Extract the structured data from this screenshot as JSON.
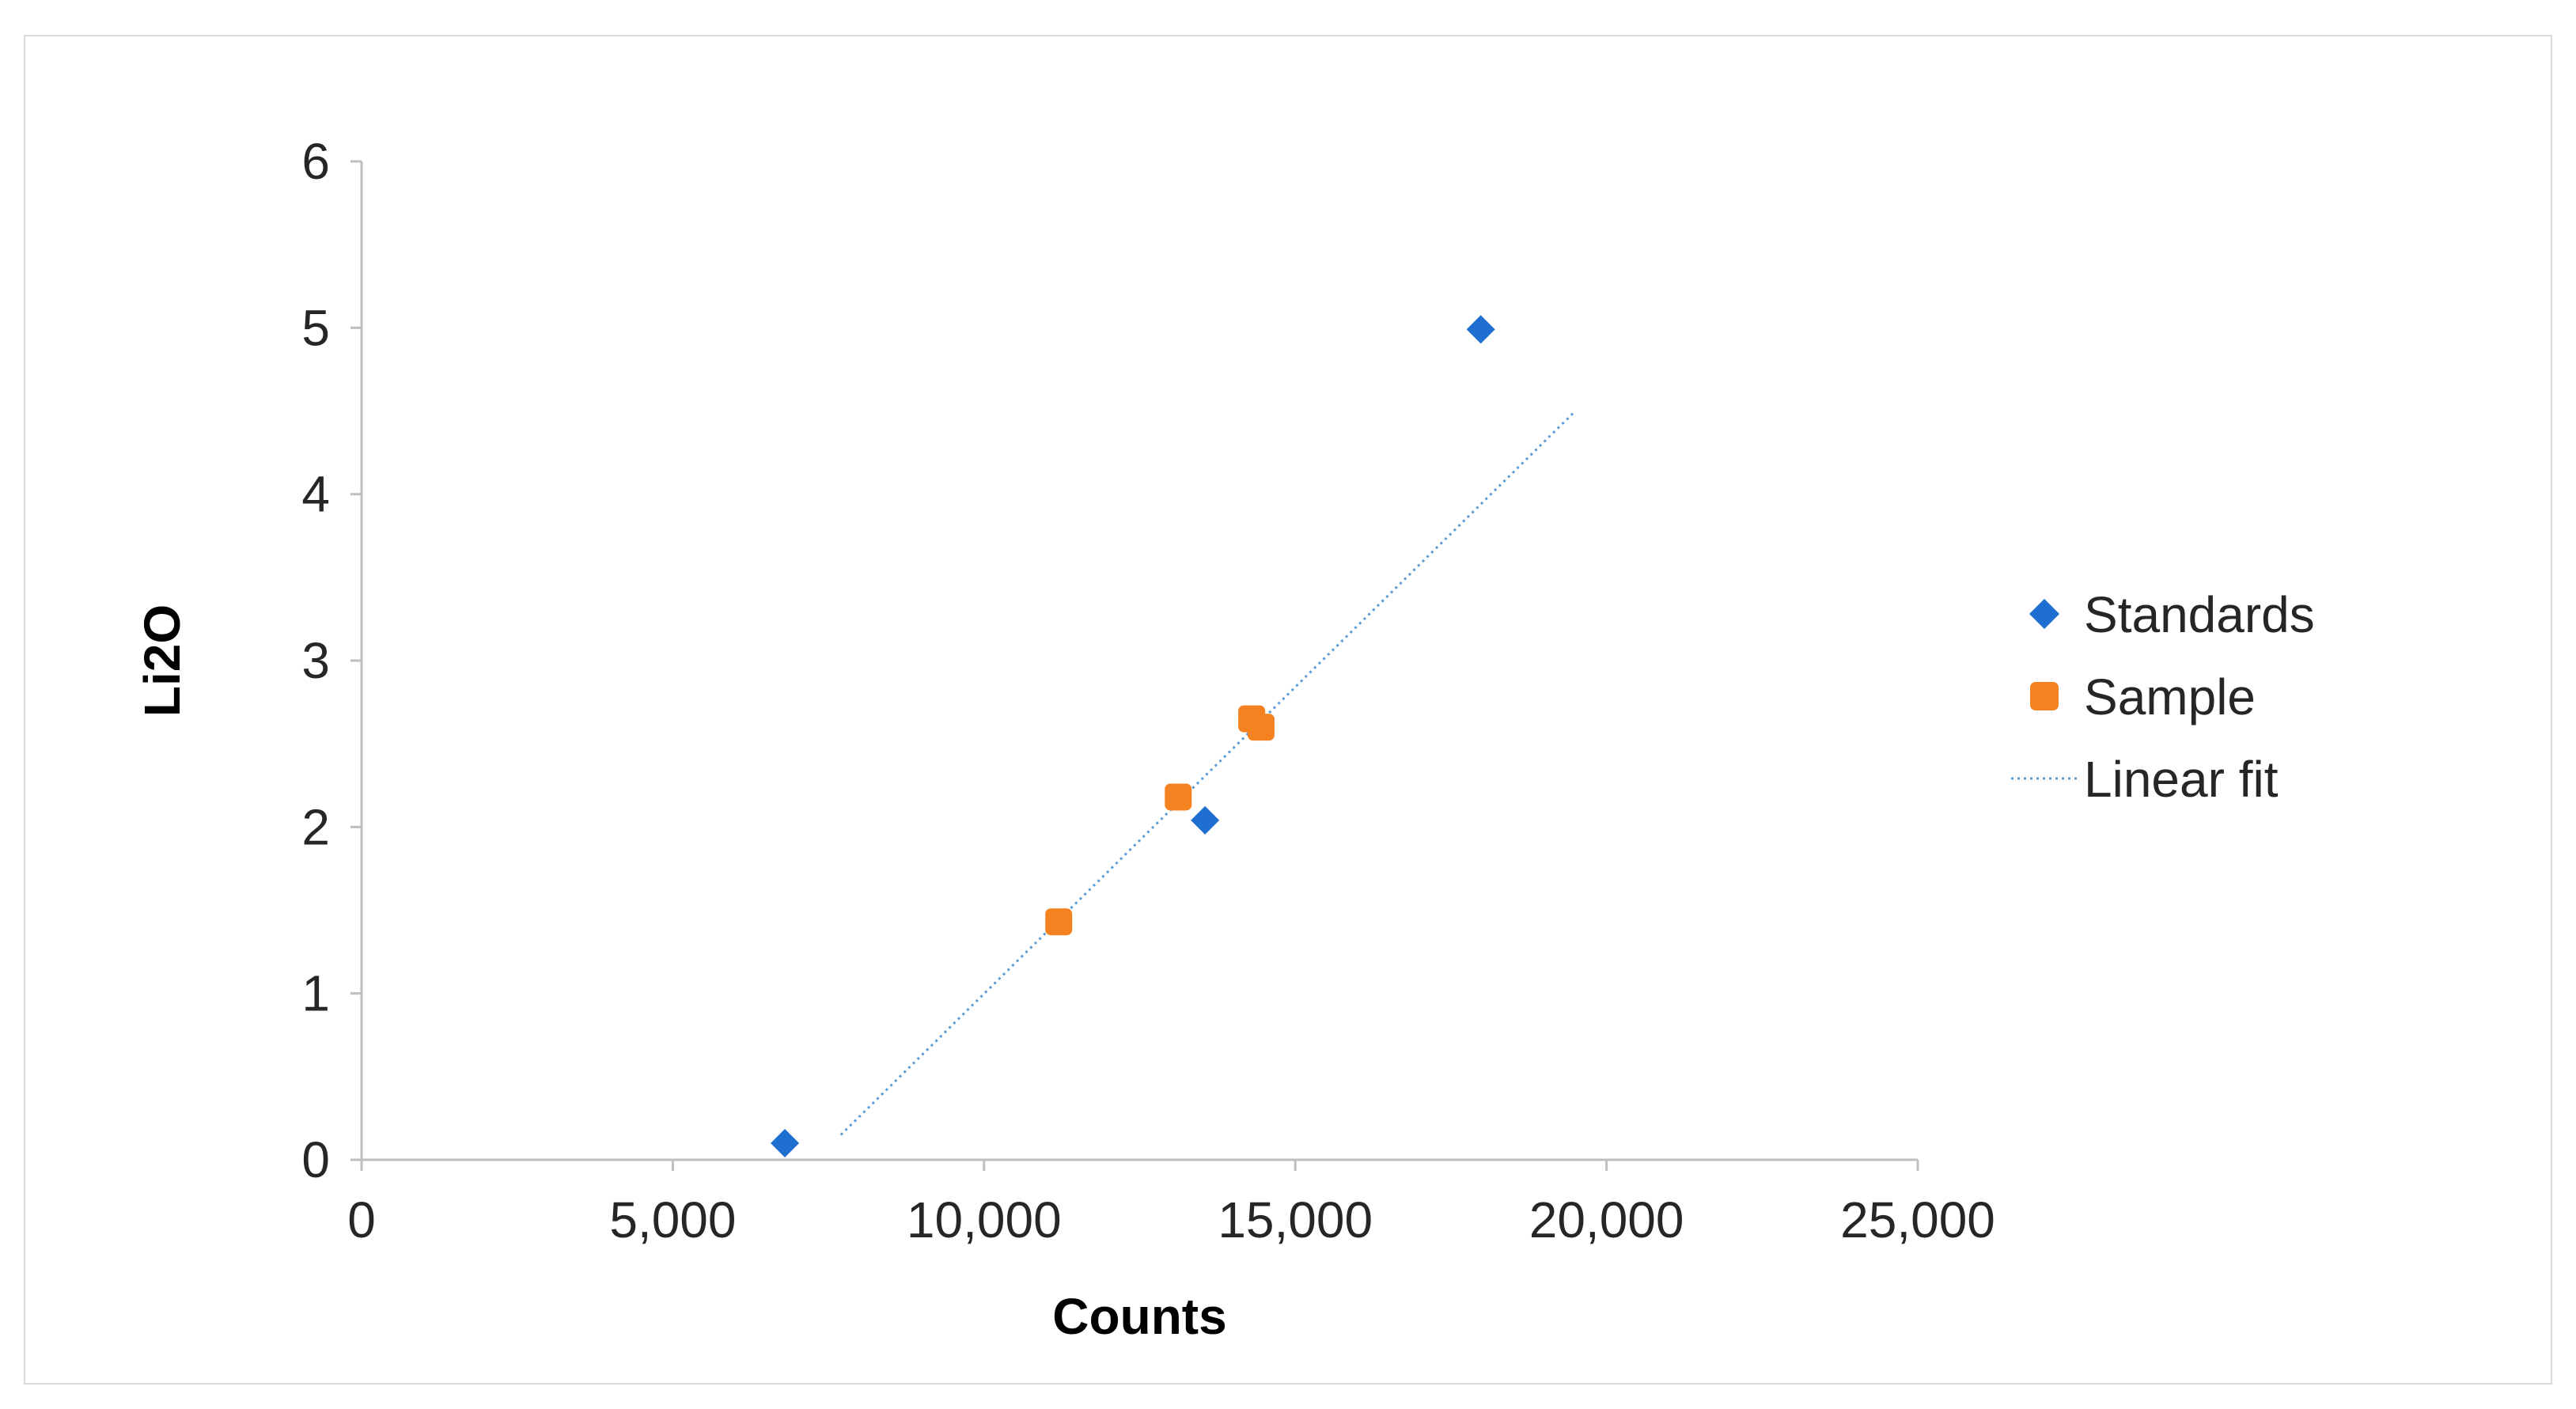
{
  "chart_data": {
    "type": "scatter",
    "xlabel": "Counts",
    "ylabel": "Li2O",
    "xlim": [
      0,
      25000
    ],
    "ylim": [
      0,
      6
    ],
    "x_ticks": [
      0,
      5000,
      10000,
      15000,
      20000,
      25000
    ],
    "x_tick_labels": [
      "0",
      "5,000",
      "10,000",
      "15,000",
      "20,000",
      "25,000"
    ],
    "y_ticks": [
      0,
      1,
      2,
      3,
      4,
      5,
      6
    ],
    "y_tick_labels": [
      "0",
      "1",
      "2",
      "3",
      "4",
      "5",
      "6"
    ],
    "grid": false,
    "legend_position": "right",
    "series": [
      {
        "name": "Standards",
        "marker": "diamond",
        "color": "#1f6fd1",
        "points": [
          {
            "x": 6800,
            "y": 0.1
          },
          {
            "x": 13550,
            "y": 2.04
          },
          {
            "x": 17980,
            "y": 4.99
          }
        ]
      },
      {
        "name": "Sample",
        "marker": "square",
        "color": "#f58220",
        "points": [
          {
            "x": 11200,
            "y": 1.43
          },
          {
            "x": 13120,
            "y": 2.18
          },
          {
            "x": 14300,
            "y": 2.65
          },
          {
            "x": 14450,
            "y": 2.6
          }
        ]
      },
      {
        "name": "Linear fit",
        "line": "dotted",
        "color": "#5b9bd5",
        "points": [
          {
            "x": 7700,
            "y": 0.15
          },
          {
            "x": 19500,
            "y": 4.5
          }
        ]
      }
    ]
  }
}
